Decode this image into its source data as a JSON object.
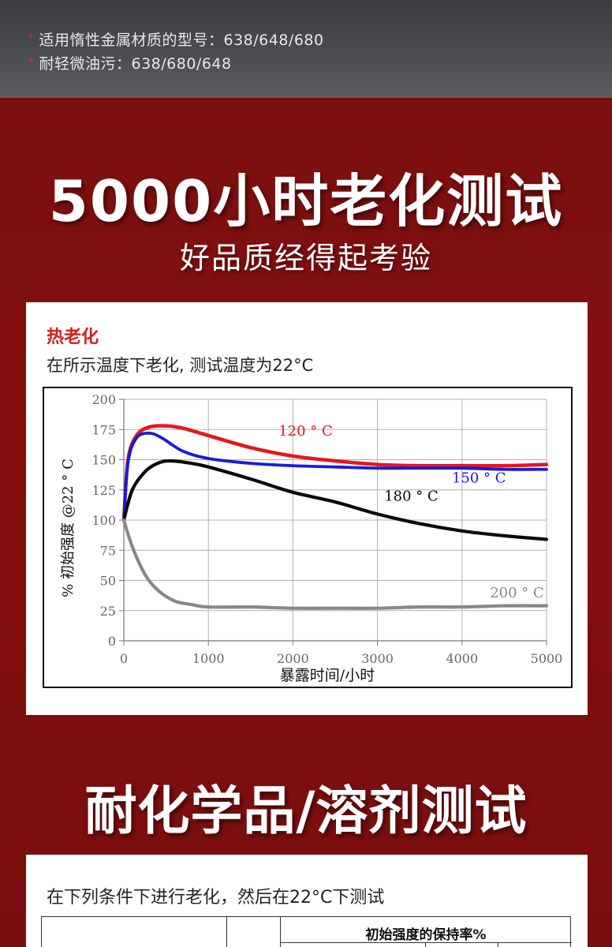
{
  "header": {
    "line1": "适用惰性金属材质的型号：638/648/680",
    "line2": "耐轻微油污：638/680/648",
    "bullet": "*"
  },
  "section1": {
    "headline": "5000小时老化测试",
    "subheadline": "好品质经得起考验"
  },
  "chart_card": {
    "title": "热老化",
    "subtitle": "在所示温度下老化, 测试温度为22°C"
  },
  "chart_data": {
    "type": "line",
    "xlabel": "暴露时间/小时",
    "ylabel": "% 初始强度 @22 ° C",
    "xlim": [
      0,
      5000
    ],
    "ylim": [
      0,
      200
    ],
    "x_ticks": [
      0,
      1000,
      2000,
      3000,
      4000,
      5000
    ],
    "y_ticks": [
      0,
      25,
      50,
      75,
      100,
      125,
      150,
      175,
      200
    ],
    "grid": true,
    "series": [
      {
        "name": "120 ° C",
        "color": "#e8151c",
        "x": [
          0,
          50,
          150,
          300,
          500,
          700,
          1000,
          1500,
          2000,
          2500,
          3000,
          3500,
          4000,
          4500,
          5000
        ],
        "y": [
          100,
          150,
          170,
          177,
          178,
          176,
          170,
          160,
          153,
          149,
          146,
          145,
          145,
          145,
          146
        ]
      },
      {
        "name": "150 ° C",
        "color": "#1a1adc",
        "x": [
          0,
          50,
          150,
          300,
          450,
          700,
          1000,
          1500,
          2000,
          2500,
          3000,
          3500,
          4000,
          4500,
          5000
        ],
        "y": [
          100,
          148,
          168,
          172,
          168,
          157,
          151,
          147,
          145,
          144,
          143,
          143,
          143,
          142,
          142
        ]
      },
      {
        "name": "180 ° C",
        "color": "#0a0a0a",
        "x": [
          0,
          100,
          250,
          400,
          550,
          800,
          1000,
          1500,
          2000,
          2500,
          3000,
          3500,
          4000,
          4500,
          5000
        ],
        "y": [
          100,
          125,
          140,
          147,
          149,
          147,
          144,
          134,
          123,
          115,
          105,
          97,
          91,
          87,
          84
        ]
      },
      {
        "name": "200 ° C",
        "color": "#888888",
        "x": [
          0,
          100,
          250,
          400,
          600,
          800,
          1000,
          1500,
          2000,
          2500,
          3000,
          3500,
          4000,
          4500,
          5000
        ],
        "y": [
          100,
          78,
          55,
          42,
          33,
          30,
          28,
          28,
          27,
          27,
          27,
          28,
          28,
          29,
          29
        ]
      }
    ]
  },
  "section2": {
    "headline": "耐化学品/溶剂测试",
    "subtitle": "在下列条件下进行老化，然后在22°C下测试",
    "table_header": "初始强度的保持率%"
  }
}
